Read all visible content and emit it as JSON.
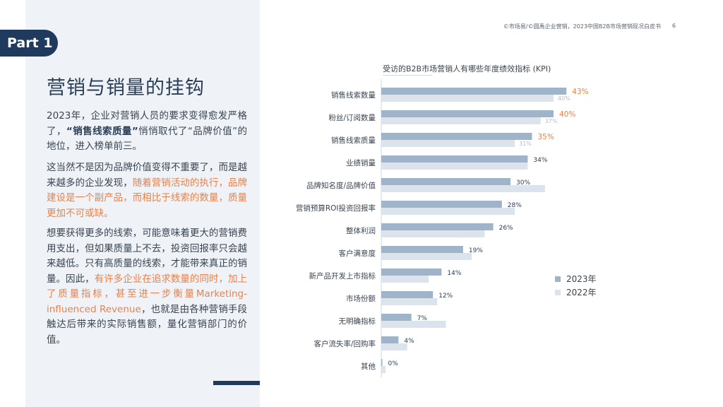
{
  "header": {
    "part_label": "Part 1",
    "source": "©市场易/©圆禹企业营销，2023中国B2B市场营销现况白皮书",
    "page_number": "6"
  },
  "title": "营销与销量的挂钩",
  "paragraphs": {
    "p1": {
      "a": "2023年，企业对营销人员的要求变得愈发严格了，",
      "b": "“销售线索质量”",
      "c": "悄悄取代了“品牌价值”的地位，进入榜单前三。"
    },
    "p2": {
      "a": "这当然不是因为品牌价值变得不重要了，而是越来越多的企业发现，",
      "b": "随着营销活动的执行，品牌建设是一个副产品，而相比于线索的数量，质量更加不可或缺。"
    },
    "p3": {
      "a": "想要获得更多的线索，可能意味着更大的营销费用支出，但如果质量上不去，投资回报率只会越来越低。只有高质量的线索，才能带来真正的销量。因此，",
      "b": "有许多企业在追求数量的同时，加上了质量指标，甚至进一步衡量Marketing-influenced Revenue",
      "c": "，也就是由各种营销手段触达后带来的实际销售额，量化营销部门的价值。"
    }
  },
  "colors": {
    "bar_2023": "#9fb3c9",
    "bar_2022": "#dbe3ec",
    "highlight": "#e8824a",
    "dark_navy": "#1f3a5c"
  },
  "chart_data": {
    "type": "bar",
    "orientation": "horizontal",
    "title": "受访的B2B市场营销人有哪些年度绩效指标 (KPI)",
    "categories": [
      "销售线索数量",
      "粉丝/订阅数量",
      "销售线索质量",
      "业绩销量",
      "品牌知名度/品牌价值",
      "营销预算ROI投资回报率",
      "整体利润",
      "客户满意度",
      "新产品开发上市指标",
      "市场份额",
      "无明确指标",
      "客户流失率/回购率",
      "其他"
    ],
    "series": [
      {
        "name": "2023年",
        "values": [
          43,
          40,
          35,
          34,
          30,
          28,
          26,
          19,
          14,
          12,
          7,
          4,
          0
        ]
      },
      {
        "name": "2022年",
        "values": [
          40,
          37,
          31,
          34,
          38,
          31,
          24,
          21,
          11,
          13,
          15,
          6,
          1
        ]
      }
    ],
    "labels_2023": [
      "43%",
      "40%",
      "35%",
      "34%",
      "30%",
      "28%",
      "26%",
      "19%",
      "14%",
      "12%",
      "7%",
      "4%",
      "0%"
    ],
    "labels_2022": [
      "40%",
      "37%",
      "31%",
      "",
      "",
      "",
      "",
      "",
      "",
      "",
      "",
      "",
      ""
    ],
    "highlight_top": 3,
    "legend_position": "right"
  }
}
